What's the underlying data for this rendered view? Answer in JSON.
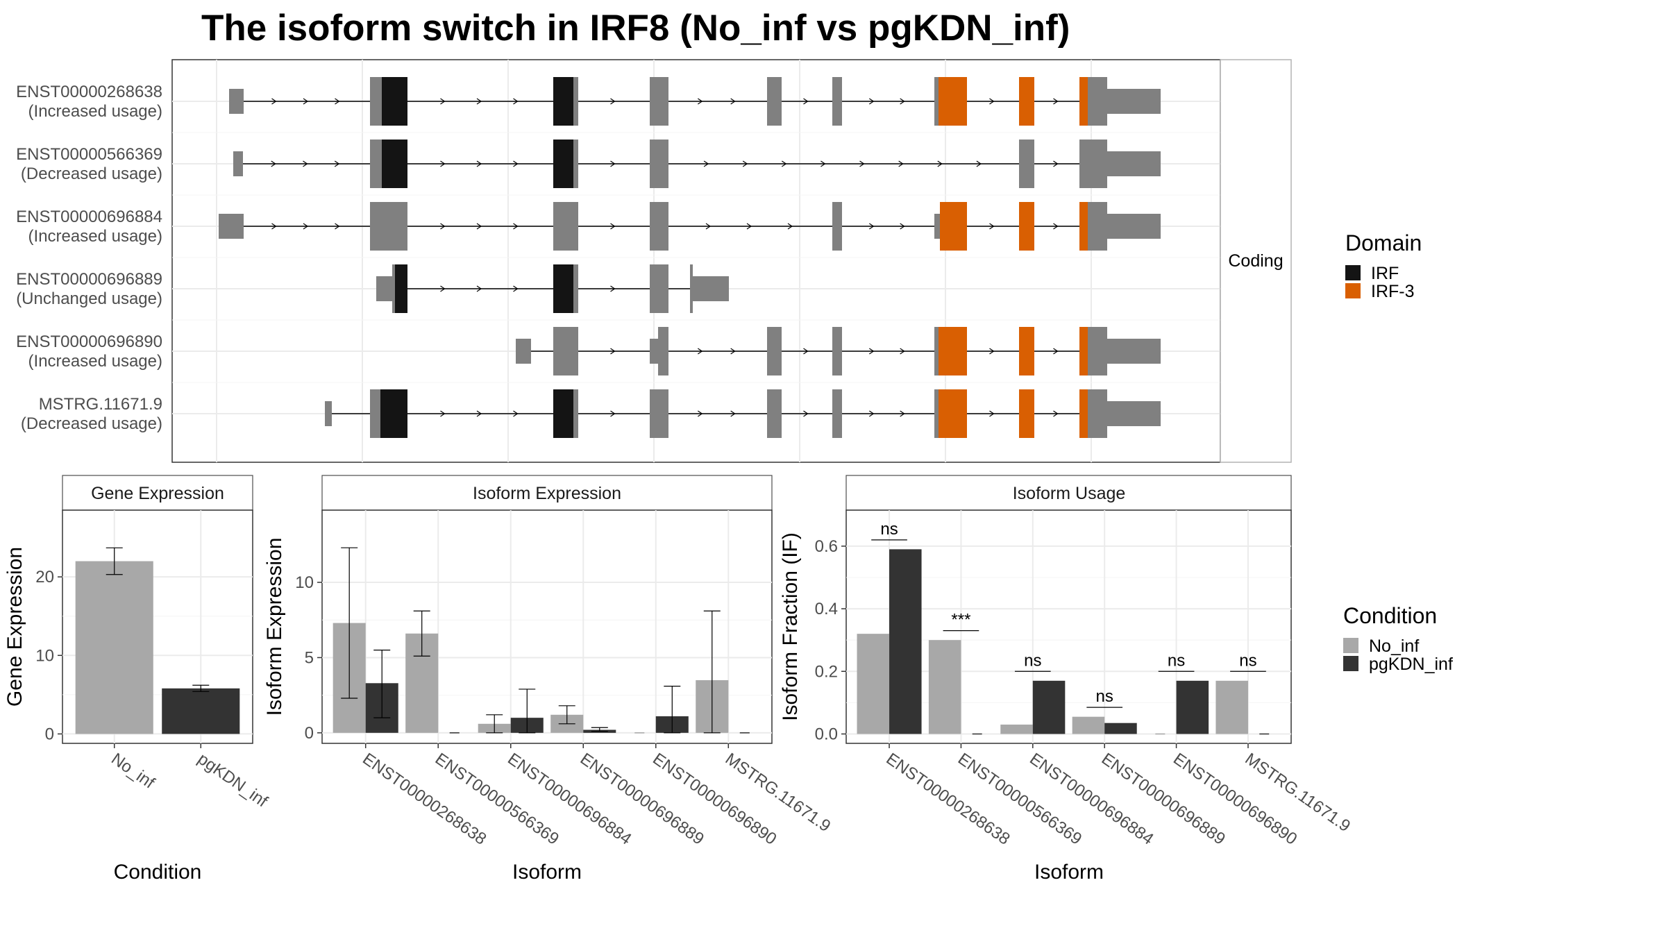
{
  "title": "The isoform switch in IRF8 (No_inf vs pgKDN_inf)",
  "colors": {
    "no_inf": "#a8a8a8",
    "pgkdn_inf": "#333333",
    "domain_irf": "#141414",
    "domain_irf3": "#d95f02",
    "exon_plain": "#808080",
    "grid": "#ebebeb"
  },
  "structure_panel": {
    "facet_label": "Coding",
    "transcripts": [
      {
        "id": "ENST00000268638",
        "status": "(Increased usage)"
      },
      {
        "id": "ENST00000566369",
        "status": "(Decreased usage)"
      },
      {
        "id": "ENST00000696884",
        "status": "(Increased usage)"
      },
      {
        "id": "ENST00000696889",
        "status": "(Unchanged usage)"
      },
      {
        "id": "ENST00000696890",
        "status": "(Increased usage)"
      },
      {
        "id": "MSTRG.11671.9",
        "status": "(Decreased usage)"
      }
    ]
  },
  "domain_legend": {
    "title": "Domain",
    "items": [
      "IRF",
      "IRF-3"
    ]
  },
  "condition_legend": {
    "title": "Condition",
    "items": [
      "No_inf",
      "pgKDN_inf"
    ]
  },
  "chart_data": [
    {
      "type": "bar",
      "title": "Gene Expression",
      "xlabel": "Condition",
      "ylabel": "Gene Expression",
      "categories": [
        "No_inf",
        "pgKDN_inf"
      ],
      "values": [
        22.0,
        5.8
      ],
      "error_low": [
        20.3,
        5.4
      ],
      "error_high": [
        23.7,
        6.2
      ],
      "ylim": [
        -1.2,
        28.5
      ],
      "yticks": [
        0,
        10,
        20
      ]
    },
    {
      "type": "bar",
      "title": "Isoform Expression",
      "xlabel": "Isoform",
      "ylabel": "Isoform Expression",
      "categories": [
        "ENST00000268638",
        "ENST00000566369",
        "ENST00000696884",
        "ENST00000696889",
        "ENST00000696890",
        "MSTRG.11671.9"
      ],
      "series": [
        {
          "name": "No_inf",
          "values": [
            7.3,
            6.6,
            0.6,
            1.2,
            0.0,
            3.5
          ],
          "error_low": [
            2.3,
            5.1,
            0.0,
            0.6,
            0.0,
            0.0
          ],
          "error_high": [
            12.3,
            8.1,
            1.2,
            1.8,
            0.0,
            8.1
          ]
        },
        {
          "name": "pgKDN_inf",
          "values": [
            3.3,
            0.0,
            1.0,
            0.2,
            1.1,
            0.0
          ],
          "error_low": [
            1.0,
            0.0,
            0.0,
            0.1,
            0.0,
            0.0
          ],
          "error_high": [
            5.5,
            0.0,
            2.9,
            0.35,
            3.1,
            0.0
          ]
        }
      ],
      "ylim": [
        -0.7,
        14.8
      ],
      "yticks": [
        0,
        5,
        10
      ]
    },
    {
      "type": "bar",
      "title": "Isoform Usage",
      "xlabel": "Isoform",
      "ylabel": "Isoform Fraction (IF)",
      "categories": [
        "ENST00000268638",
        "ENST00000566369",
        "ENST00000696884",
        "ENST00000696889",
        "ENST00000696890",
        "MSTRG.11671.9"
      ],
      "series": [
        {
          "name": "No_inf",
          "values": [
            0.32,
            0.3,
            0.03,
            0.055,
            0.0,
            0.17
          ]
        },
        {
          "name": "pgKDN_inf",
          "values": [
            0.59,
            0.0,
            0.17,
            0.035,
            0.17,
            0.0
          ]
        }
      ],
      "annotations": [
        "ns",
        "***",
        "ns",
        "ns",
        "ns",
        "ns"
      ],
      "annotation_heights": [
        0.62,
        0.33,
        0.2,
        0.085,
        0.2,
        0.2
      ],
      "ylim": [
        -0.03,
        0.715
      ],
      "yticks": [
        0.0,
        0.2,
        0.4,
        0.6
      ],
      "ytick_labels": [
        "0.0",
        "0.2",
        "0.4",
        "0.6"
      ]
    }
  ]
}
